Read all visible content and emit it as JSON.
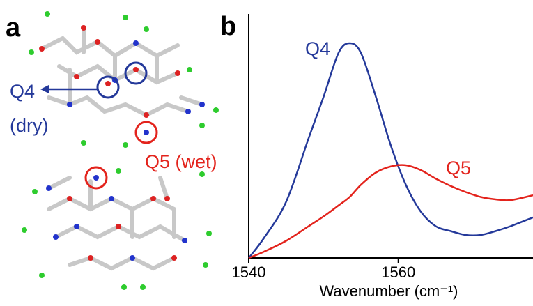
{
  "panel_labels": [
    "a",
    "b"
  ],
  "structure_labels": {
    "q4": "Q4",
    "q4_state": "(dry)",
    "q5": "Q5 (wet)"
  },
  "chart_data": {
    "type": "line",
    "x_label": "Wavenumber (cm⁻¹)",
    "x": [
      1540,
      1542,
      1545,
      1548,
      1550,
      1552,
      1553.5,
      1555,
      1557,
      1559,
      1561,
      1563,
      1565,
      1567,
      1569,
      1571,
      1573,
      1575,
      1578
    ],
    "series": [
      {
        "name": "Q4",
        "color": "#24399a",
        "values": [
          0,
          0.08,
          0.23,
          0.49,
          0.66,
          0.84,
          0.88,
          0.84,
          0.66,
          0.46,
          0.3,
          0.19,
          0.13,
          0.11,
          0.094,
          0.094,
          0.11,
          0.13,
          0.166
        ]
      },
      {
        "name": "Q5",
        "color": "#e3231c",
        "values": [
          0,
          0.025,
          0.07,
          0.13,
          0.17,
          0.215,
          0.25,
          0.3,
          0.35,
          0.375,
          0.38,
          0.36,
          0.325,
          0.295,
          0.27,
          0.25,
          0.24,
          0.237,
          0.257
        ]
      }
    ],
    "xlim": [
      1540,
      1578
    ],
    "xticks": [
      1540,
      1560
    ],
    "ylim": [
      0,
      1
    ]
  }
}
